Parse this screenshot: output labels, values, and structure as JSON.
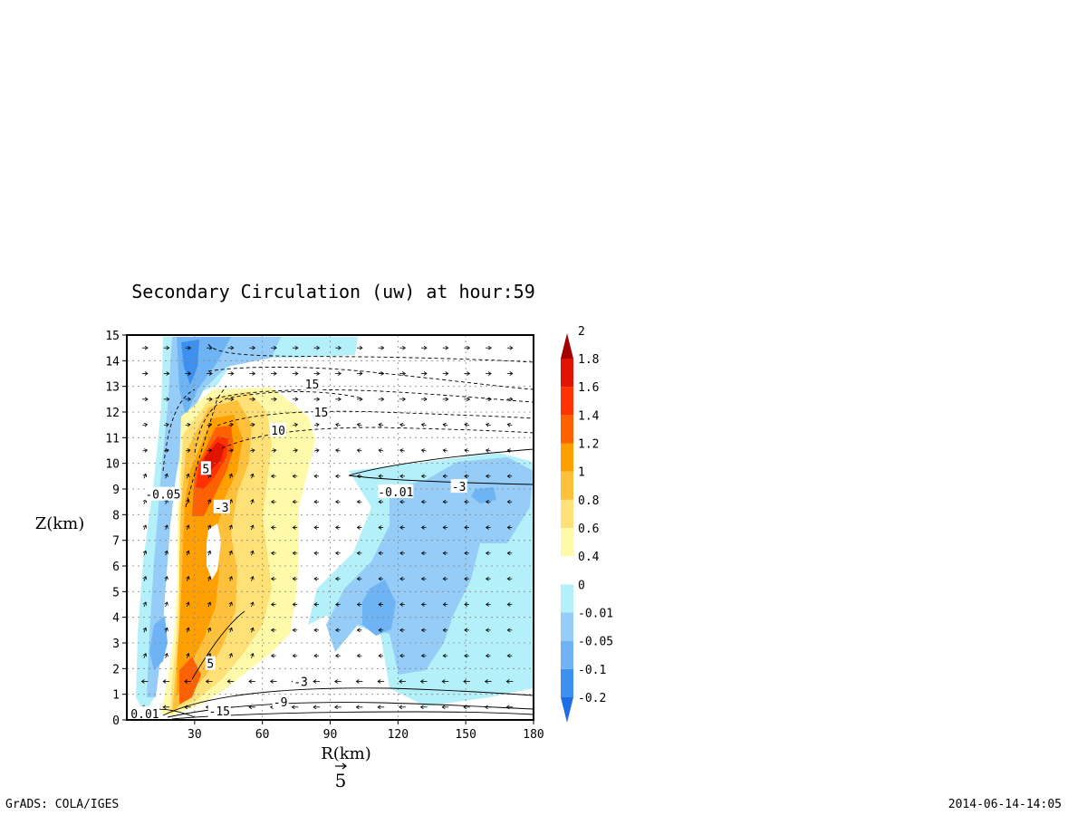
{
  "footer": {
    "left": "GrADS: COLA/IGES",
    "right": "2014-06-14-14:05"
  },
  "chart_data": {
    "type": "heatmap",
    "title": "Secondary Circulation (uw) at hour:59",
    "xlabel": "R(km)",
    "ylabel": "Z(km)",
    "xlim": [
      0,
      180
    ],
    "ylim": [
      0,
      15
    ],
    "x_ticks": [
      30,
      60,
      90,
      120,
      150,
      180
    ],
    "y_ticks": [
      0,
      1,
      2,
      3,
      4,
      5,
      6,
      7,
      8,
      9,
      10,
      11,
      12,
      13,
      14,
      15
    ],
    "grid": true,
    "vector_reference": {
      "label": "5",
      "value": 5
    },
    "colorbar": {
      "placement": "right",
      "levels": [
        "-0.2",
        "-0.1",
        "-0.05",
        "-0.01",
        "0",
        "0.4",
        "0.6",
        "0.8",
        "1",
        "1.2",
        "1.4",
        "1.6",
        "1.8",
        "2"
      ],
      "colors": [
        "#1e6ee6",
        "#3c91f0",
        "#6eb4f5",
        "#96cdf8",
        "#b4f0fa",
        "#ffffff",
        "#fffaaa",
        "#ffe178",
        "#ffc03c",
        "#ffa000",
        "#ff6000",
        "#ff3200",
        "#e11400",
        "#a50000"
      ]
    },
    "contour_labels": [
      {
        "text": "15",
        "r": 82,
        "z": 13.1
      },
      {
        "text": "15",
        "r": 86,
        "z": 12.0
      },
      {
        "text": "10",
        "r": 67,
        "z": 11.3
      },
      {
        "text": "5",
        "r": 35,
        "z": 9.8
      },
      {
        "text": "-3",
        "r": 42,
        "z": 8.3
      },
      {
        "text": "-0.05",
        "r": 16,
        "z": 8.8
      },
      {
        "text": "-0.01",
        "r": 119,
        "z": 8.9
      },
      {
        "text": "-3",
        "r": 147,
        "z": 9.1
      },
      {
        "text": "5",
        "r": 37,
        "z": 2.2
      },
      {
        "text": "-3",
        "r": 77,
        "z": 1.5
      },
      {
        "text": "-9",
        "r": 68,
        "z": 0.7
      },
      {
        "text": "-15",
        "r": 41,
        "z": 0.35
      },
      {
        "text": "0.01",
        "r": 8,
        "z": 0.25
      }
    ]
  }
}
